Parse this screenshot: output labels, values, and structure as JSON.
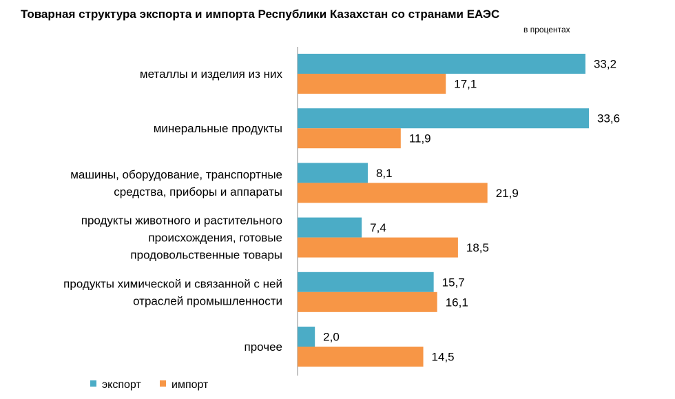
{
  "chart_data": {
    "type": "bar",
    "orientation": "horizontal",
    "title": "Товарная структура экспорта и импорта Республики Казахстан со странами ЕАЭС",
    "unit_label": "в процентах",
    "categories": [
      [
        "металлы и изделия из них"
      ],
      [
        "минеральные продукты"
      ],
      [
        "машины, оборудование, транспортные",
        "средства, приборы и аппараты"
      ],
      [
        "продукты животного и растительного",
        "происхождения, готовые",
        "продовольственные товары"
      ],
      [
        "продукты химической и связанной с ней",
        "отраслей промышленности"
      ],
      [
        "прочее"
      ]
    ],
    "series": [
      {
        "name": "экспорт",
        "color": "#4BACC6",
        "values": [
          33.2,
          33.6,
          8.1,
          7.4,
          15.7,
          2.0
        ],
        "labels": [
          "33,2",
          "33,6",
          "8,1",
          "7,4",
          "15,7",
          "2,0"
        ]
      },
      {
        "name": "импорт",
        "color": "#F79646",
        "values": [
          17.1,
          11.9,
          21.9,
          18.5,
          16.1,
          14.5
        ],
        "labels": [
          "17,1",
          "11,9",
          "21,9",
          "18,5",
          "16,1",
          "14,5"
        ]
      }
    ],
    "xlim": [
      0,
      40
    ],
    "grid": false,
    "legend": "bottom-left"
  }
}
